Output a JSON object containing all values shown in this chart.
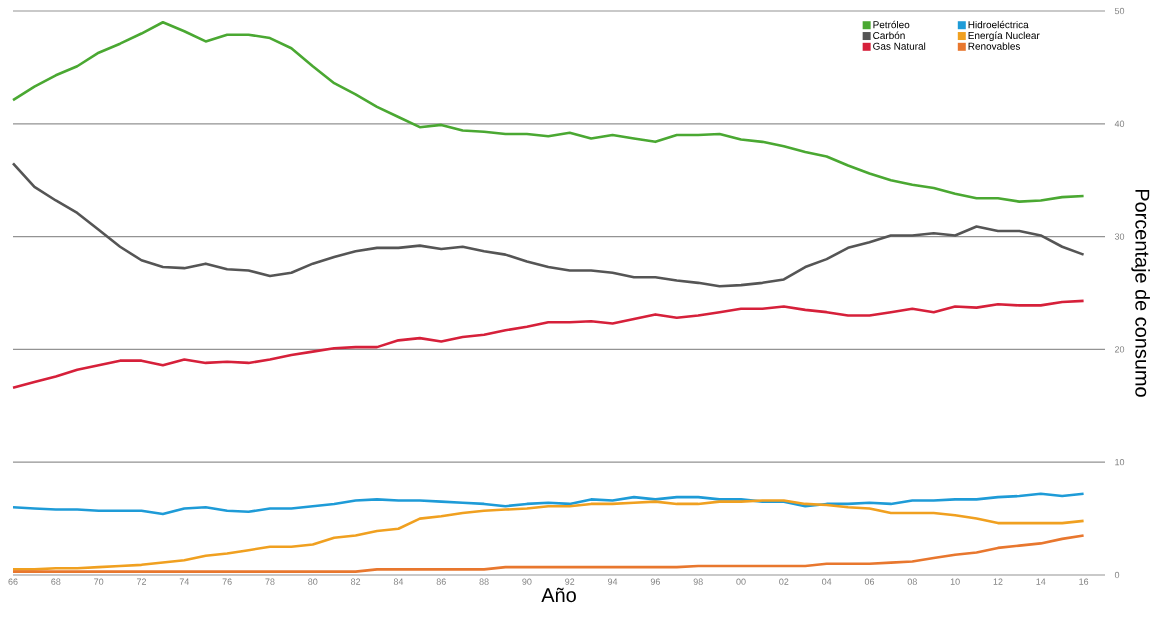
{
  "chart_data": {
    "type": "line",
    "xlabel": "Año",
    "ylabel": "Porcentaje de consumo",
    "x": [
      1966,
      1967,
      1968,
      1969,
      1970,
      1971,
      1972,
      1973,
      1974,
      1975,
      1976,
      1977,
      1978,
      1979,
      1980,
      1981,
      1982,
      1983,
      1984,
      1985,
      1986,
      1987,
      1988,
      1989,
      1990,
      1991,
      1992,
      1993,
      1994,
      1995,
      1996,
      1997,
      1998,
      1999,
      2000,
      2001,
      2002,
      2003,
      2004,
      2005,
      2006,
      2007,
      2008,
      2009,
      2010,
      2011,
      2012,
      2013,
      2014,
      2015,
      2016
    ],
    "series": [
      {
        "name": "Petróleo",
        "color": "#4aa832",
        "values": [
          42.1,
          43.3,
          44.3,
          45.1,
          46.3,
          47.1,
          48.0,
          49.0,
          48.2,
          47.3,
          47.9,
          47.9,
          47.6,
          46.7,
          45.1,
          43.6,
          42.6,
          41.5,
          40.6,
          39.7,
          39.9,
          39.4,
          39.3,
          39.1,
          39.1,
          38.9,
          39.2,
          38.7,
          39.0,
          38.7,
          38.4,
          39.0,
          39.0,
          39.1,
          38.6,
          38.4,
          38.0,
          37.5,
          37.1,
          36.3,
          35.6,
          35.0,
          34.6,
          34.3,
          33.8,
          33.4,
          33.4,
          33.1,
          33.2,
          33.5,
          33.6
        ]
      },
      {
        "name": "Hidroeléctrica",
        "color": "#1e9bd7",
        "values": [
          6.0,
          5.9,
          5.8,
          5.8,
          5.7,
          5.7,
          5.7,
          5.4,
          5.9,
          6.0,
          5.7,
          5.6,
          5.9,
          5.9,
          6.1,
          6.3,
          6.6,
          6.7,
          6.6,
          6.6,
          6.5,
          6.4,
          6.3,
          6.1,
          6.3,
          6.4,
          6.3,
          6.7,
          6.6,
          6.9,
          6.7,
          6.9,
          6.9,
          6.7,
          6.7,
          6.5,
          6.5,
          6.1,
          6.3,
          6.3,
          6.4,
          6.3,
          6.6,
          6.6,
          6.7,
          6.7,
          6.9,
          7.0,
          7.2,
          7.0,
          7.2
        ]
      },
      {
        "name": "Carbón",
        "color": "#555555",
        "values": [
          36.5,
          34.4,
          33.2,
          32.1,
          30.6,
          29.1,
          27.9,
          27.3,
          27.2,
          27.6,
          27.1,
          27.0,
          26.5,
          26.8,
          27.6,
          28.2,
          28.7,
          29.0,
          29.0,
          29.2,
          28.9,
          29.1,
          28.7,
          28.4,
          27.8,
          27.3,
          27.0,
          27.0,
          26.8,
          26.4,
          26.4,
          26.1,
          25.9,
          25.6,
          25.7,
          25.9,
          26.2,
          27.3,
          28.0,
          29.0,
          29.5,
          30.1,
          30.1,
          30.3,
          30.1,
          30.9,
          30.5,
          30.5,
          30.1,
          29.1,
          28.4
        ]
      },
      {
        "name": "Energía Nuclear",
        "color": "#f0a020",
        "values": [
          0.5,
          0.5,
          0.6,
          0.6,
          0.7,
          0.8,
          0.9,
          1.1,
          1.3,
          1.7,
          1.9,
          2.2,
          2.5,
          2.5,
          2.7,
          3.3,
          3.5,
          3.9,
          4.1,
          5.0,
          5.2,
          5.5,
          5.7,
          5.8,
          5.9,
          6.1,
          6.1,
          6.3,
          6.3,
          6.4,
          6.5,
          6.3,
          6.3,
          6.5,
          6.5,
          6.6,
          6.6,
          6.3,
          6.2,
          6.0,
          5.9,
          5.5,
          5.5,
          5.5,
          5.3,
          5.0,
          4.6,
          4.6,
          4.6,
          4.6,
          4.8
        ]
      },
      {
        "name": "Gas Natural",
        "color": "#d6203a",
        "values": [
          16.6,
          17.1,
          17.6,
          18.2,
          18.6,
          19.0,
          19.0,
          18.6,
          19.1,
          18.8,
          18.9,
          18.8,
          19.1,
          19.5,
          19.8,
          20.1,
          20.2,
          20.2,
          20.8,
          21.0,
          20.7,
          21.1,
          21.3,
          21.7,
          22.0,
          22.4,
          22.4,
          22.5,
          22.3,
          22.7,
          23.1,
          22.8,
          23.0,
          23.3,
          23.6,
          23.6,
          23.8,
          23.5,
          23.3,
          23.0,
          23.0,
          23.3,
          23.6,
          23.3,
          23.8,
          23.7,
          24.0,
          23.9,
          23.9,
          24.2,
          24.3
        ]
      },
      {
        "name": "Renovables",
        "color": "#e8772e",
        "values": [
          0.3,
          0.3,
          0.3,
          0.3,
          0.3,
          0.3,
          0.3,
          0.3,
          0.3,
          0.3,
          0.3,
          0.3,
          0.3,
          0.3,
          0.3,
          0.3,
          0.3,
          0.5,
          0.5,
          0.5,
          0.5,
          0.5,
          0.5,
          0.7,
          0.7,
          0.7,
          0.7,
          0.7,
          0.7,
          0.7,
          0.7,
          0.7,
          0.8,
          0.8,
          0.8,
          0.8,
          0.8,
          0.8,
          1.0,
          1.0,
          1.0,
          1.1,
          1.2,
          1.5,
          1.8,
          2.0,
          2.4,
          2.6,
          2.8,
          3.2,
          3.5
        ]
      }
    ],
    "xlim": [
      1966,
      2017
    ],
    "ylim": [
      0,
      50
    ],
    "xticks": [
      {
        "value": 1966,
        "label": "66"
      },
      {
        "value": 1968,
        "label": "68"
      },
      {
        "value": 1970,
        "label": "70"
      },
      {
        "value": 1972,
        "label": "72"
      },
      {
        "value": 1974,
        "label": "74"
      },
      {
        "value": 1976,
        "label": "76"
      },
      {
        "value": 1978,
        "label": "78"
      },
      {
        "value": 1980,
        "label": "80"
      },
      {
        "value": 1982,
        "label": "82"
      },
      {
        "value": 1984,
        "label": "84"
      },
      {
        "value": 1986,
        "label": "86"
      },
      {
        "value": 1988,
        "label": "88"
      },
      {
        "value": 1990,
        "label": "90"
      },
      {
        "value": 1992,
        "label": "92"
      },
      {
        "value": 1994,
        "label": "94"
      },
      {
        "value": 1996,
        "label": "96"
      },
      {
        "value": 1998,
        "label": "98"
      },
      {
        "value": 2000,
        "label": "00"
      },
      {
        "value": 2002,
        "label": "02"
      },
      {
        "value": 2004,
        "label": "04"
      },
      {
        "value": 2006,
        "label": "06"
      },
      {
        "value": 2008,
        "label": "08"
      },
      {
        "value": 2010,
        "label": "10"
      },
      {
        "value": 2012,
        "label": "12"
      },
      {
        "value": 2014,
        "label": "14"
      },
      {
        "value": 2016,
        "label": "16"
      }
    ],
    "yticks": [
      0,
      10,
      20,
      30,
      40,
      50
    ],
    "grid": "y",
    "legend": "top right",
    "line_style": "solid"
  }
}
